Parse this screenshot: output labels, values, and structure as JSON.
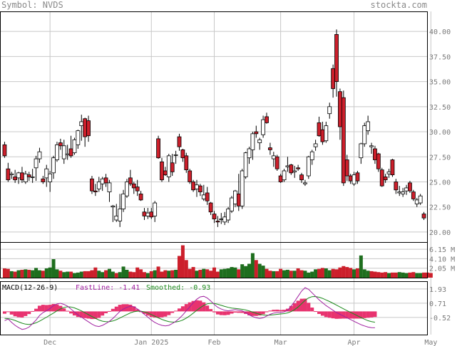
{
  "header": {
    "symbol_label": "Symbol: NVDS",
    "site": "stockta.com"
  },
  "colors": {
    "up_fill": "#ffffff",
    "down_fill": "#cc1f2b",
    "vol_up": "#1e6e1e",
    "vol_down": "#cc1f2b",
    "macd_hist": "#e8336f",
    "fast_line": "#a020a0",
    "smoothed_line": "#1c8a1c",
    "grid": "#c8c8c8",
    "axis_text": "#7a7a7a"
  },
  "chart_data": [
    {
      "type": "candlestick",
      "symbol": "NVDS",
      "ylim": [
        19,
        42
      ],
      "ytick_labels": [
        "40.00",
        "37.50",
        "35.00",
        "32.50",
        "30.00",
        "27.50",
        "25.00",
        "22.50",
        "20.00"
      ],
      "yticks": [
        40,
        37.5,
        35,
        32.5,
        30,
        27.5,
        25,
        22.5,
        20
      ],
      "x_labels": [
        "Dec",
        "Jan 2025",
        "Feb",
        "Mar",
        "Apr",
        "May"
      ],
      "x_label_bar_index": [
        13,
        42,
        60,
        79,
        100,
        122
      ],
      "grid": true,
      "ohlc": [
        [
          28.7,
          29.0,
          27.4,
          27.6
        ],
        [
          26.3,
          26.9,
          25.0,
          25.2
        ],
        [
          25.7,
          26.0,
          25.3,
          25.8
        ],
        [
          25.5,
          26.2,
          24.9,
          25.2
        ],
        [
          25.4,
          26.0,
          24.8,
          25.9
        ],
        [
          25.9,
          26.5,
          24.9,
          25.2
        ],
        [
          25.0,
          26.1,
          24.8,
          25.8
        ],
        [
          25.7,
          26.0,
          25.1,
          25.5
        ],
        [
          25.5,
          26.3,
          24.9,
          25.5
        ],
        [
          26.4,
          27.6,
          25.1,
          27.3
        ],
        [
          27.3,
          28.4,
          26.9,
          28.0
        ],
        [
          25.3,
          25.6,
          24.8,
          25.0
        ],
        [
          25.4,
          26.7,
          24.5,
          26.3
        ],
        [
          25.0,
          26.1,
          24.0,
          25.8
        ],
        [
          25.9,
          27.6,
          25.3,
          27.4
        ],
        [
          27.2,
          29.0,
          27.0,
          28.7
        ],
        [
          28.9,
          29.3,
          28.2,
          28.6
        ],
        [
          27.3,
          29.2,
          26.8,
          28.6
        ],
        [
          27.7,
          28.7,
          27.2,
          27.8
        ],
        [
          28.3,
          29.6,
          27.4,
          27.6
        ],
        [
          27.9,
          29.4,
          27.7,
          29.2
        ],
        [
          28.7,
          30.2,
          28.3,
          30.1
        ],
        [
          30.6,
          31.7,
          29.1,
          31.0
        ],
        [
          31.3,
          31.4,
          28.5,
          29.5
        ],
        [
          31.1,
          31.6,
          29.0,
          29.6
        ],
        [
          25.3,
          25.6,
          23.8,
          24.1
        ],
        [
          24.1,
          24.8,
          23.6,
          24.0
        ],
        [
          24.3,
          25.5,
          24.0,
          25.0
        ],
        [
          24.8,
          25.5,
          24.1,
          25.3
        ],
        [
          25.4,
          25.8,
          24.5,
          24.9
        ],
        [
          24.0,
          25.2,
          23.0,
          24.9
        ],
        [
          22.5,
          22.7,
          21.0,
          22.6
        ],
        [
          21.2,
          22.8,
          21.0,
          21.6
        ],
        [
          21.1,
          23.8,
          20.5,
          22.3
        ],
        [
          22.3,
          24.2,
          22.0,
          23.8
        ],
        [
          23.6,
          25.3,
          23.4,
          25.0
        ],
        [
          25.4,
          26.2,
          24.6,
          24.8
        ],
        [
          24.8,
          25.0,
          23.8,
          24.4
        ],
        [
          24.5,
          25.2,
          23.6,
          24.1
        ],
        [
          23.8,
          24.1,
          23.1,
          23.2
        ],
        [
          22.0,
          22.4,
          21.2,
          21.6
        ],
        [
          21.6,
          22.4,
          21.3,
          21.9
        ],
        [
          22.0,
          22.4,
          21.3,
          21.5
        ],
        [
          21.6,
          23.1,
          21.0,
          22.9
        ],
        [
          29.3,
          29.6,
          27.3,
          27.4
        ],
        [
          27.0,
          27.4,
          25.0,
          25.2
        ],
        [
          26.1,
          26.5,
          25.6,
          25.7
        ],
        [
          25.5,
          27.8,
          25.0,
          27.6
        ],
        [
          26.9,
          27.8,
          25.6,
          26.0
        ],
        [
          27.7,
          28.1,
          26.8,
          27.7
        ],
        [
          29.5,
          29.8,
          28.1,
          28.5
        ],
        [
          28.2,
          28.3,
          27.0,
          27.4
        ],
        [
          27.6,
          27.9,
          25.9,
          26.2
        ],
        [
          26.1,
          26.3,
          24.8,
          25.0
        ],
        [
          25.0,
          25.2,
          24.0,
          24.2
        ],
        [
          24.3,
          25.2,
          23.5,
          24.7
        ],
        [
          24.6,
          24.8,
          23.6,
          24.0
        ],
        [
          23.3,
          24.7,
          23.1,
          23.7
        ],
        [
          23.9,
          24.5,
          22.7,
          23.1
        ],
        [
          22.9,
          23.0,
          21.7,
          22.0
        ],
        [
          21.8,
          22.1,
          20.9,
          21.3
        ],
        [
          21.1,
          21.6,
          20.5,
          21.0
        ],
        [
          21.3,
          21.9,
          20.8,
          21.3
        ],
        [
          21.0,
          22.0,
          20.7,
          21.5
        ],
        [
          21.2,
          22.5,
          20.9,
          22.3
        ],
        [
          22.1,
          23.6,
          21.9,
          23.4
        ],
        [
          22.8,
          24.2,
          22.5,
          24.1
        ],
        [
          23.8,
          25.8,
          22.1,
          22.6
        ],
        [
          22.6,
          26.3,
          22.3,
          26.1
        ],
        [
          25.5,
          28.0,
          25.3,
          27.9
        ],
        [
          27.4,
          28.5,
          26.8,
          28.3
        ],
        [
          28.2,
          30.0,
          27.2,
          29.8
        ],
        [
          30.0,
          30.6,
          29.4,
          29.8
        ],
        [
          28.9,
          29.4,
          28.2,
          29.2
        ],
        [
          29.7,
          31.6,
          29.4,
          31.2
        ],
        [
          31.5,
          31.9,
          30.8,
          30.9
        ],
        [
          28.4,
          28.9,
          27.7,
          28.2
        ],
        [
          27.3,
          28.0,
          26.5,
          27.6
        ],
        [
          27.5,
          27.7,
          26.1,
          26.3
        ],
        [
          25.6,
          25.8,
          24.9,
          25.0
        ],
        [
          25.2,
          26.3,
          25.0,
          26.1
        ],
        [
          26.5,
          27.5,
          26.0,
          26.6
        ],
        [
          26.7,
          26.8,
          25.7,
          25.9
        ],
        [
          26.0,
          26.6,
          25.4,
          26.1
        ],
        [
          26.4,
          26.7,
          26.1,
          26.3
        ],
        [
          25.7,
          25.9,
          24.9,
          25.2
        ],
        [
          24.8,
          25.2,
          24.6,
          24.9
        ],
        [
          25.6,
          27.6,
          25.3,
          27.5
        ],
        [
          27.2,
          28.2,
          26.7,
          28.0
        ],
        [
          28.5,
          29.2,
          28.1,
          28.8
        ],
        [
          30.9,
          31.5,
          29.5,
          29.6
        ],
        [
          30.2,
          31.0,
          28.7,
          29.0
        ],
        [
          29.1,
          31.0,
          28.9,
          30.6
        ],
        [
          31.8,
          32.9,
          31.3,
          32.5
        ],
        [
          36.3,
          36.7,
          33.4,
          34.3
        ],
        [
          39.7,
          40.2,
          33.5,
          35.0
        ],
        [
          34.0,
          34.3,
          29.2,
          30.5
        ],
        [
          33.4,
          34.1,
          24.6,
          24.9
        ],
        [
          27.2,
          27.7,
          25.1,
          25.6
        ],
        [
          25.6,
          25.8,
          24.8,
          25.1
        ],
        [
          24.8,
          26.0,
          24.6,
          25.7
        ],
        [
          25.9,
          26.1,
          24.8,
          25.1
        ],
        [
          27.4,
          28.9,
          26.8,
          28.8
        ],
        [
          28.8,
          30.9,
          28.5,
          30.6
        ],
        [
          30.1,
          31.6,
          29.7,
          31.0
        ],
        [
          28.5,
          28.9,
          27.8,
          28.6
        ],
        [
          28.3,
          28.6,
          26.8,
          27.2
        ],
        [
          27.8,
          27.9,
          26.0,
          26.3
        ],
        [
          26.2,
          26.4,
          24.5,
          24.6
        ],
        [
          25.5,
          25.8,
          24.9,
          25.2
        ],
        [
          25.8,
          26.3,
          25.4,
          26.0
        ],
        [
          27.2,
          27.3,
          25.5,
          25.7
        ],
        [
          25.0,
          25.3,
          23.8,
          24.2
        ],
        [
          23.9,
          24.6,
          23.6,
          24.0
        ],
        [
          23.8,
          24.4,
          23.5,
          24.0
        ],
        [
          24.1,
          24.7,
          23.7,
          24.4
        ],
        [
          24.9,
          25.1,
          23.9,
          24.1
        ],
        [
          24.0,
          24.2,
          23.1,
          23.3
        ],
        [
          22.8,
          23.4,
          22.5,
          23.2
        ],
        [
          22.9,
          23.8,
          22.7,
          23.6
        ],
        [
          21.8,
          22.0,
          21.2,
          21.4
        ]
      ]
    },
    {
      "type": "bar",
      "name": "Volume",
      "ytick_labels": [
        "6.15 M",
        "4.10 M",
        "2.05 M"
      ],
      "yticks": [
        6.15,
        4.1,
        2.05
      ],
      "ylim": [
        0,
        7.7
      ],
      "values_millions": [
        2.0,
        1.9,
        1.4,
        1.3,
        1.6,
        1.7,
        1.8,
        1.7,
        1.6,
        2.1,
        1.6,
        1.5,
        2.0,
        2.2,
        4.0,
        1.8,
        1.5,
        1.2,
        1.3,
        1.3,
        1.0,
        1.1,
        1.3,
        1.4,
        1.4,
        1.6,
        2.2,
        1.5,
        1.2,
        1.6,
        1.9,
        1.3,
        1.0,
        1.2,
        2.4,
        1.7,
        1.3,
        1.2,
        2.2,
        1.8,
        1.2,
        1.0,
        1.4,
        1.6,
        2.4,
        1.3,
        1.6,
        1.5,
        1.6,
        1.7,
        4.7,
        7.0,
        3.8,
        1.9,
        2.3,
        1.5,
        1.7,
        1.9,
        1.8,
        1.5,
        2.2,
        1.3,
        1.8,
        1.9,
        2.0,
        2.3,
        2.2,
        1.8,
        2.9,
        2.5,
        3.0,
        5.3,
        3.8,
        3.0,
        2.6,
        1.9,
        1.5,
        1.4,
        1.4,
        1.9,
        1.6,
        1.7,
        1.5,
        1.5,
        2.0,
        1.6,
        1.5,
        1.1,
        1.3,
        1.8,
        1.9,
        2.1,
        2.0,
        1.6,
        1.9,
        1.8,
        2.2,
        2.5,
        2.3,
        2.1,
        1.8,
        2.0,
        4.8,
        1.8,
        1.5,
        1.4,
        1.3,
        1.2,
        1.1,
        1.2,
        1.0,
        1.1,
        1.1,
        1.2,
        1.1,
        1.0,
        1.1,
        1.2,
        1.0,
        1.0,
        1.1,
        1.1,
        1.0
      ],
      "up_flags": [
        0,
        0,
        1,
        0,
        1,
        0,
        1,
        0,
        1,
        1,
        1,
        0,
        1,
        1,
        1,
        1,
        0,
        1,
        1,
        0,
        1,
        1,
        1,
        0,
        0,
        0,
        0,
        1,
        1,
        0,
        1,
        1,
        0,
        1,
        1,
        1,
        0,
        0,
        0,
        0,
        0,
        1,
        0,
        1,
        0,
        0,
        0,
        1,
        0,
        1,
        0,
        0,
        0,
        0,
        0,
        1,
        0,
        1,
        0,
        0,
        0,
        0,
        1,
        1,
        1,
        1,
        1,
        0,
        1,
        1,
        1,
        1,
        0,
        1,
        1,
        0,
        0,
        1,
        0,
        0,
        1,
        1,
        0,
        1,
        0,
        0,
        1,
        1,
        1,
        1,
        0,
        0,
        1,
        1,
        0,
        0,
        0,
        0,
        0,
        0,
        1,
        0,
        1,
        1,
        1,
        0,
        0,
        0,
        0,
        0,
        1,
        0,
        0,
        1,
        1,
        1,
        0,
        0,
        1,
        1,
        0
      ]
    },
    {
      "type": "line",
      "name": "MACD(12-26-9)",
      "label": "MACD(12-26-9)",
      "fast_label": "FastLine: -1.41",
      "smoothed_label": "Smoothed: -0.93",
      "ytick_labels": [
        "1.93",
        "0.71",
        "-0.52"
      ],
      "yticks": [
        1.93,
        0.71,
        -0.52
      ],
      "ylim": [
        -2.0,
        2.6
      ],
      "series": [
        {
          "name": "FastLine",
          "values": [
            -0.8,
            -0.65,
            -0.95,
            -1.2,
            -1.4,
            -1.55,
            -1.5,
            -1.35,
            -1.05,
            -0.75,
            -0.35,
            -0.1,
            0.05,
            0.25,
            0.5,
            0.65,
            0.7,
            0.6,
            0.45,
            0.2,
            -0.05,
            -0.3,
            -0.5,
            -0.7,
            -0.9,
            -1.1,
            -1.25,
            -1.3,
            -1.2,
            -1.05,
            -0.85,
            -0.6,
            -0.3,
            0.0,
            0.2,
            0.35,
            0.45,
            0.4,
            0.2,
            0.0,
            -0.25,
            -0.5,
            -0.75,
            -0.95,
            -1.1,
            -1.2,
            -1.25,
            -1.2,
            -1.05,
            -0.85,
            -0.6,
            -0.3,
            0.05,
            0.4,
            0.75,
            1.05,
            1.25,
            1.3,
            1.15,
            0.9,
            0.6,
            0.35,
            0.2,
            0.1,
            0.05,
            0.1,
            0.15,
            0.1,
            0.05,
            -0.1,
            -0.3,
            -0.45,
            -0.55,
            -0.6,
            -0.55,
            -0.4,
            -0.25,
            -0.15,
            -0.1,
            -0.1,
            -0.05,
            0.1,
            0.45,
            0.85,
            1.3,
            1.75,
            2.05,
            1.9,
            1.6,
            1.3,
            1.0,
            0.75,
            0.5,
            0.3,
            0.1,
            -0.1,
            -0.25,
            -0.4,
            -0.55,
            -0.7,
            -0.85,
            -1.0,
            -1.15,
            -1.25,
            -1.35,
            -1.4,
            -1.41
          ]
        },
        {
          "name": "Smoothed",
          "values": [
            -0.6,
            -0.62,
            -0.68,
            -0.78,
            -0.9,
            -1.02,
            -1.1,
            -1.12,
            -1.08,
            -0.98,
            -0.84,
            -0.67,
            -0.5,
            -0.32,
            -0.14,
            0.05,
            0.22,
            0.34,
            0.4,
            0.38,
            0.3,
            0.18,
            0.04,
            -0.12,
            -0.28,
            -0.44,
            -0.6,
            -0.74,
            -0.84,
            -0.89,
            -0.88,
            -0.82,
            -0.71,
            -0.57,
            -0.42,
            -0.27,
            -0.13,
            -0.03,
            0.02,
            0.02,
            -0.04,
            -0.14,
            -0.27,
            -0.42,
            -0.56,
            -0.69,
            -0.8,
            -0.88,
            -0.92,
            -0.91,
            -0.85,
            -0.74,
            -0.58,
            -0.38,
            -0.15,
            0.09,
            0.32,
            0.52,
            0.65,
            0.7,
            0.68,
            0.61,
            0.52,
            0.43,
            0.35,
            0.29,
            0.25,
            0.22,
            0.18,
            0.12,
            0.04,
            -0.06,
            -0.16,
            -0.25,
            -0.31,
            -0.33,
            -0.32,
            -0.29,
            -0.25,
            -0.22,
            -0.19,
            -0.13,
            -0.02,
            0.15,
            0.38,
            0.66,
            0.95,
            1.16,
            1.27,
            1.28,
            1.22,
            1.12,
            0.99,
            0.85,
            0.7,
            0.54,
            0.38,
            0.22,
            0.07,
            -0.08,
            -0.23,
            -0.38,
            -0.53,
            -0.67,
            -0.8,
            -0.88,
            -0.93
          ]
        }
      ]
    }
  ]
}
